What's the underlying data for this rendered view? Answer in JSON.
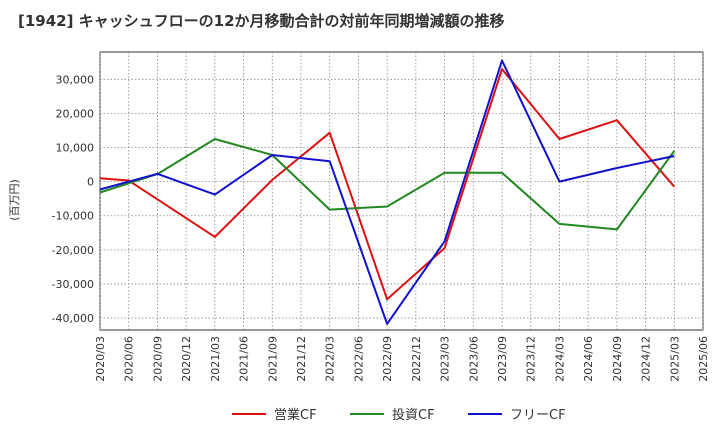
{
  "chart_data": {
    "type": "line",
    "title": "[1942]  キャッシュフローの12か月移動合計の対前年同期増減額の推移",
    "ylabel": "(百万円)",
    "xlabel": "",
    "categories": [
      "2020/03",
      "2020/06",
      "2020/09",
      "2020/12",
      "2021/03",
      "2021/06",
      "2021/09",
      "2021/12",
      "2022/03",
      "2022/06",
      "2022/09",
      "2022/12",
      "2023/03",
      "2023/06",
      "2023/09",
      "2023/12",
      "2024/03",
      "2024/06",
      "2024/09",
      "2024/12",
      "2025/03",
      "2025/06"
    ],
    "y_ticks": [
      30000,
      20000,
      10000,
      0,
      -10000,
      -20000,
      -30000,
      -40000
    ],
    "y_tick_labels": [
      "30,000",
      "20,000",
      "10,000",
      "0",
      "-10,000",
      "-20,000",
      "-30,000",
      "-40,000"
    ],
    "ylim": [
      -43500,
      38000
    ],
    "grid": true,
    "legend_position": "bottom",
    "series": [
      {
        "name": "営業CF",
        "color": "#dd1111",
        "values": [
          1000,
          300,
          null,
          null,
          -16200,
          null,
          500,
          null,
          14300,
          null,
          -34500,
          null,
          -19500,
          null,
          33000,
          null,
          12500,
          null,
          18000,
          null,
          -1500,
          null
        ]
      },
      {
        "name": "投資CF",
        "color": "#228822",
        "values": [
          -3200,
          null,
          2200,
          null,
          12500,
          null,
          7800,
          null,
          -8200,
          null,
          -7300,
          null,
          2600,
          null,
          2600,
          null,
          -12400,
          null,
          -14000,
          null,
          9000,
          null
        ]
      },
      {
        "name": "フリーCF",
        "color": "#1111cc",
        "values": [
          -2300,
          null,
          2300,
          null,
          -3800,
          null,
          7800,
          null,
          6000,
          null,
          -41700,
          null,
          -17500,
          null,
          35500,
          null,
          0,
          null,
          4000,
          null,
          7500,
          null
        ]
      }
    ]
  }
}
